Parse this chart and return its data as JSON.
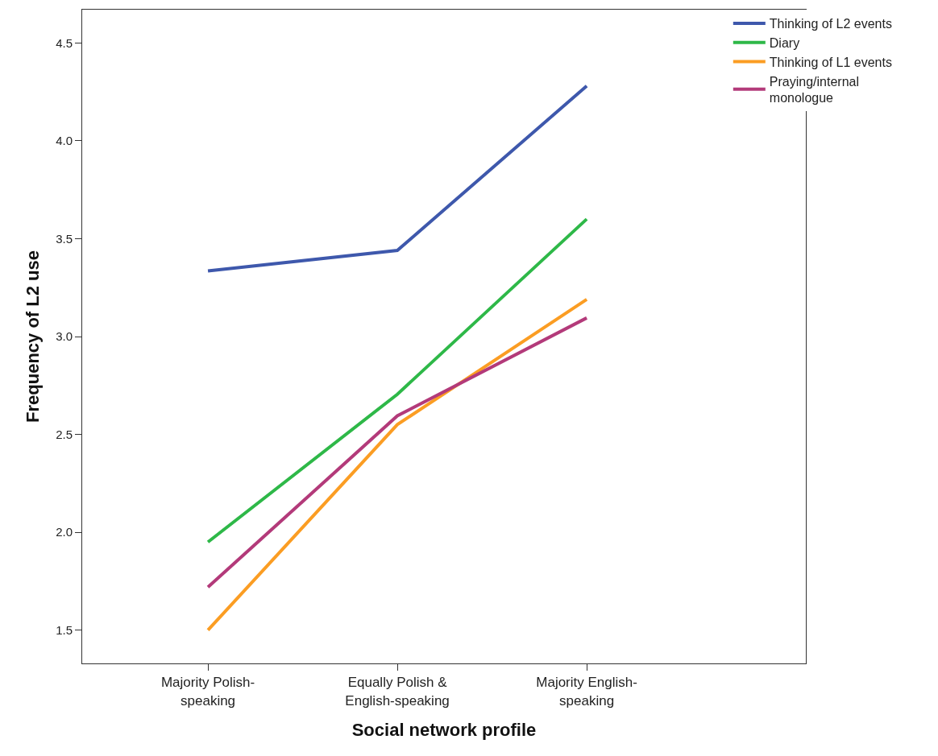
{
  "chart_data": {
    "type": "line",
    "xlabel": "Social network profile",
    "ylabel": "Frequency of L2 use",
    "categories": [
      "Majority Polish-speaking",
      "Equally Polish & English-speaking",
      "Majority English-speaking"
    ],
    "series": [
      {
        "name": "Thinking of L2 events",
        "color": "#3e58ac",
        "values": [
          3.335,
          3.44,
          4.28
        ]
      },
      {
        "name": "Diary",
        "color": "#2eb848",
        "values": [
          1.95,
          2.705,
          3.6
        ]
      },
      {
        "name": "Thinking of L1 events",
        "color": "#fb9d23",
        "values": [
          1.5,
          2.55,
          3.19
        ]
      },
      {
        "name": "Praying/internal monologue",
        "color": "#b33a7a",
        "values": [
          1.72,
          2.595,
          3.095
        ]
      }
    ],
    "ylim": [
      1.33,
      4.67
    ],
    "yticks": [
      {
        "value": 1.5,
        "label": "1.5"
      },
      {
        "value": 2.0,
        "label": "2.0"
      },
      {
        "value": 2.5,
        "label": "2.5"
      },
      {
        "value": 3.0,
        "label": "3.0"
      },
      {
        "value": 3.5,
        "label": "3.5"
      },
      {
        "value": 4.0,
        "label": "4.0"
      },
      {
        "value": 4.5,
        "label": "4.5"
      }
    ],
    "legend": "top right",
    "marker": "none",
    "line_style": "solid"
  }
}
